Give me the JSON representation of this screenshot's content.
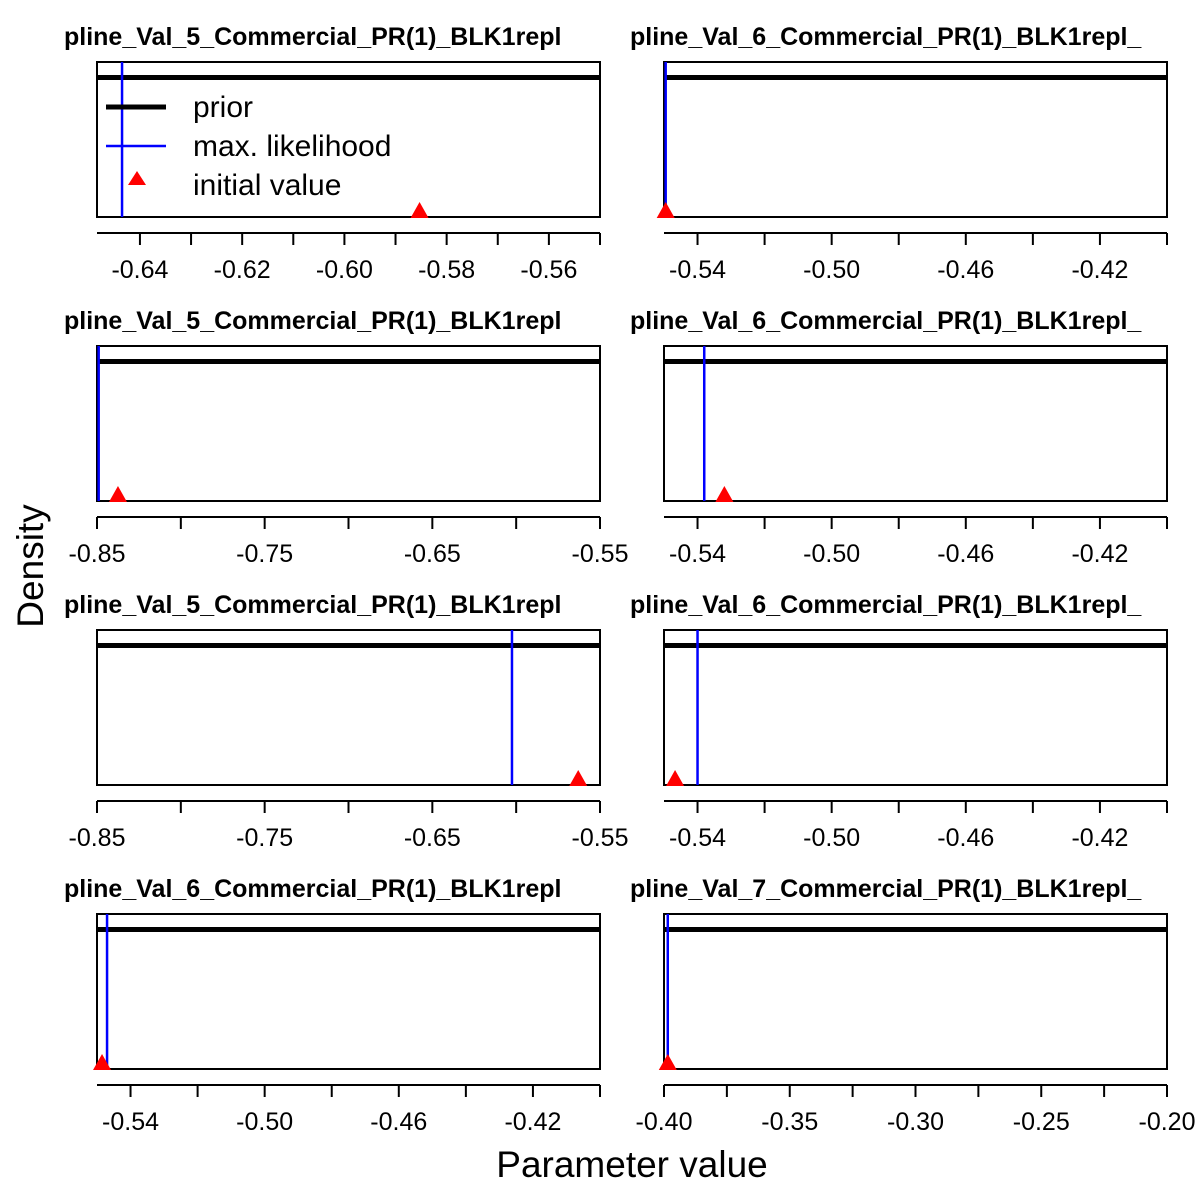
{
  "figure": {
    "xlabel": "Parameter value",
    "ylabel": "Density",
    "colors": {
      "prior": "#000000",
      "mle": "#0000ff",
      "initial": "#ff0000"
    }
  },
  "legend": {
    "placement": "top-left of first panel",
    "entries": [
      {
        "key": "prior",
        "label": "prior"
      },
      {
        "key": "mle",
        "label": "max. likelihood"
      },
      {
        "key": "initial",
        "label": "initial value"
      }
    ]
  },
  "chart_data": [
    {
      "type": "line",
      "title": "pline_Val_5_Commercial_PR(1)_BLK1repl",
      "xlim": [
        -0.6484,
        -0.55
      ],
      "ticks": [
        -0.64,
        -0.62,
        -0.6,
        -0.58,
        -0.56
      ],
      "tick_labels": [
        "-0.64",
        "-0.62",
        "-0.60",
        "-0.58",
        "-0.56"
      ],
      "mle": -0.6435,
      "initial": -0.5853,
      "prior_level": 0.9
    },
    {
      "type": "line",
      "title": "pline_Val_6_Commercial_PR(1)_BLK1repl_",
      "xlim": [
        -0.55,
        -0.4
      ],
      "ticks": [
        -0.54,
        -0.5,
        -0.46,
        -0.42
      ],
      "tick_labels": [
        "-0.54",
        "-0.50",
        "-0.46",
        "-0.42"
      ],
      "mle": -0.5495,
      "initial": -0.5495,
      "prior_level": 0.9
    },
    {
      "type": "line",
      "title": "pline_Val_5_Commercial_PR(1)_BLK1repl",
      "xlim": [
        -0.85,
        -0.55
      ],
      "ticks": [
        -0.85,
        -0.75,
        -0.65,
        -0.55
      ],
      "minor_ticks": [
        -0.8,
        -0.7,
        -0.6
      ],
      "tick_labels": [
        "-0.85",
        "-0.75",
        "-0.65",
        "-0.55"
      ],
      "mle": -0.849,
      "initial": -0.8375,
      "prior_level": 0.9
    },
    {
      "type": "line",
      "title": "pline_Val_6_Commercial_PR(1)_BLK1repl_",
      "xlim": [
        -0.55,
        -0.4
      ],
      "ticks": [
        -0.54,
        -0.5,
        -0.46,
        -0.42
      ],
      "tick_labels": [
        "-0.54",
        "-0.50",
        "-0.46",
        "-0.42"
      ],
      "mle": -0.538,
      "initial": -0.532,
      "prior_level": 0.9
    },
    {
      "type": "line",
      "title": "pline_Val_5_Commercial_PR(1)_BLK1repl",
      "xlim": [
        -0.85,
        -0.55
      ],
      "ticks": [
        -0.85,
        -0.75,
        -0.65,
        -0.55
      ],
      "minor_ticks": [
        -0.8,
        -0.7,
        -0.6
      ],
      "tick_labels": [
        "-0.85",
        "-0.75",
        "-0.65",
        "-0.55"
      ],
      "mle": -0.6025,
      "initial": -0.563,
      "prior_level": 0.9
    },
    {
      "type": "line",
      "title": "pline_Val_6_Commercial_PR(1)_BLK1repl_",
      "xlim": [
        -0.55,
        -0.4
      ],
      "ticks": [
        -0.54,
        -0.5,
        -0.46,
        -0.42
      ],
      "tick_labels": [
        "-0.54",
        "-0.50",
        "-0.46",
        "-0.42"
      ],
      "mle": -0.54,
      "initial": -0.5467,
      "prior_level": 0.9
    },
    {
      "type": "line",
      "title": "pline_Val_6_Commercial_PR(1)_BLK1repl",
      "xlim": [
        -0.55,
        -0.4
      ],
      "ticks": [
        -0.54,
        -0.5,
        -0.46,
        -0.42
      ],
      "tick_labels": [
        "-0.54",
        "-0.50",
        "-0.46",
        "-0.42"
      ],
      "mle": -0.547,
      "initial": -0.5485,
      "prior_level": 0.9
    },
    {
      "type": "line",
      "title": "pline_Val_7_Commercial_PR(1)_BLK1repl_",
      "xlim": [
        -0.4,
        -0.2
      ],
      "ticks": [
        -0.4,
        -0.35,
        -0.3,
        -0.25,
        -0.2
      ],
      "tick_labels": [
        "-0.40",
        "-0.35",
        "-0.30",
        "-0.25",
        "-0.20"
      ],
      "mle": -0.3985,
      "initial": -0.3985,
      "prior_level": 0.9
    }
  ]
}
